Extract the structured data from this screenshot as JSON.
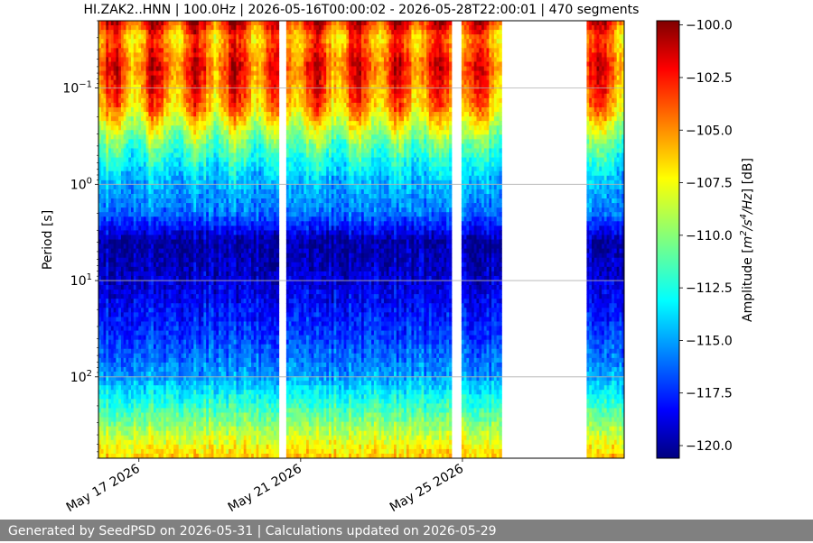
{
  "chart_data": {
    "type": "heatmap",
    "title": "HI.ZAK2..HNN | 100.0Hz | 2026-05-16T00:00:02 - 2026-05-28T22:00:01 | 470 segments",
    "ylabel": "Period [s]",
    "y_scale": "log",
    "y_inverted": true,
    "ylim": [
      0.02,
      700
    ],
    "y_ticks": [
      0.1,
      1,
      10,
      100
    ],
    "y_tick_labels": [
      {
        "base": "10",
        "exp": "−1"
      },
      {
        "base": "10",
        "exp": "0"
      },
      {
        "base": "10",
        "exp": "1"
      },
      {
        "base": "10",
        "exp": "2"
      }
    ],
    "y_grid": true,
    "x_axis": "date",
    "xlim": [
      "2026-05-16T00:00",
      "2026-05-29T00:00"
    ],
    "x_ticks": [
      {
        "date": "2026-05-17",
        "label": "May 17 2026"
      },
      {
        "date": "2026-05-21",
        "label": "May 21 2026"
      },
      {
        "date": "2026-05-25",
        "label": "May 25 2026"
      }
    ],
    "data_segments": [
      [
        "2026-05-16T00:00",
        "2026-05-20T10:30"
      ],
      [
        "2026-05-20T15:00",
        "2026-05-24T18:00"
      ],
      [
        "2026-05-25T00:00",
        "2026-05-25T23:00"
      ],
      [
        "2026-05-28T02:00",
        "2026-05-29T00:00"
      ]
    ],
    "spectral_profile": [
      {
        "period": 0.02,
        "db": -102
      },
      {
        "period": 0.03,
        "db": -105
      },
      {
        "period": 0.06,
        "db": -103
      },
      {
        "period": 0.15,
        "db": -105
      },
      {
        "period": 0.4,
        "db": -111
      },
      {
        "period": 0.8,
        "db": -114
      },
      {
        "period": 2,
        "db": -116
      },
      {
        "period": 4,
        "db": -120
      },
      {
        "period": 10,
        "db": -119
      },
      {
        "period": 40,
        "db": -117
      },
      {
        "period": 100,
        "db": -115
      },
      {
        "period": 300,
        "db": -110
      },
      {
        "period": 700,
        "db": -106
      }
    ],
    "colorbar": {
      "label": "Amplitude [m²/s⁴/Hz] [dB]",
      "label_parts": [
        "Amplitude [",
        "m",
        "2",
        "/",
        "s",
        "4",
        "/Hz",
        "] [dB]"
      ],
      "min": -120.6,
      "max": -99.8,
      "ticks": [
        -100.0,
        -102.5,
        -105.0,
        -107.5,
        -110.0,
        -112.5,
        -115.0,
        -117.5,
        -120.0
      ],
      "tick_labels": [
        "−100.0",
        "−102.5",
        "−105.0",
        "−107.5",
        "−110.0",
        "−112.5",
        "−115.0",
        "−117.5",
        "−120.0"
      ],
      "colormap": "jet"
    }
  },
  "footer": {
    "text": "Generated by SeedPSD on 2026-05-31 | Calculations updated on 2026-05-29"
  }
}
